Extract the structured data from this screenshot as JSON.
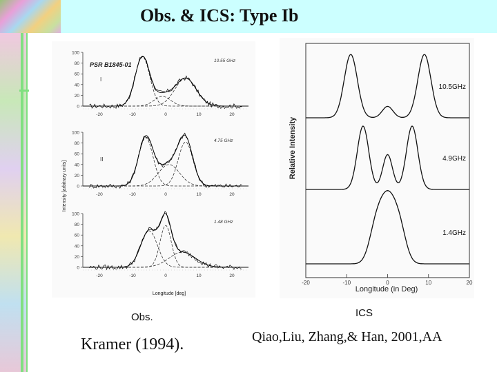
{
  "slide": {
    "title": "Obs. & ICS:  Type Ib",
    "left_caption": "Obs.",
    "right_caption": "ICS",
    "left_reference": "Kramer (1994).",
    "right_reference": "Qiao,Liu, Zhang,& Han, 2001,AA",
    "colors": {
      "banner": "#ccffff",
      "accent_green": "#80e080"
    }
  },
  "chart_data": [
    {
      "type": "line",
      "title": "",
      "source": "Kramer (1994)",
      "pulsar": "PSR B1845-01",
      "ylabel": "Intensity [arbitrary units]",
      "xlabel": "Longitude [deg]",
      "xlim": [
        -25,
        25
      ],
      "ylim": [
        0,
        100
      ],
      "x_ticks": [
        "-20",
        "-10",
        "0",
        "10",
        "20"
      ],
      "y_ticks": [
        "0",
        "20",
        "40",
        "60",
        "80",
        "100"
      ],
      "panels": [
        {
          "frequency": "10.55 GHz",
          "label": "I",
          "components": [
            {
              "center": -7,
              "amp": 92,
              "width": 2.2
            },
            {
              "center": -1,
              "amp": 18,
              "width": 2.5
            },
            {
              "center": 6,
              "amp": 52,
              "width": 3.2
            }
          ]
        },
        {
          "frequency": "4.75 GHz",
          "label": "II",
          "components": [
            {
              "center": -6,
              "amp": 90,
              "width": 2.2
            },
            {
              "center": 1,
              "amp": 40,
              "width": 3.2
            },
            {
              "center": 6,
              "amp": 82,
              "width": 2.2
            }
          ]
        },
        {
          "frequency": "1.48 GHz",
          "label": "",
          "components": [
            {
              "center": -5,
              "amp": 68,
              "width": 2.5
            },
            {
              "center": 0,
              "amp": 78,
              "width": 1.7
            },
            {
              "center": 5,
              "amp": 28,
              "width": 4
            }
          ]
        }
      ]
    },
    {
      "type": "line",
      "title": "",
      "source": "Qiao, Liu, Zhang & Han (2001)",
      "ylabel": "Relative Intensity",
      "xlabel": "Longitude (in Deg)",
      "xlim": [
        -20,
        20
      ],
      "x_ticks": [
        "-20",
        "-10",
        "0",
        "10",
        "20"
      ],
      "panels": [
        {
          "frequency": "10.5GHz",
          "components": [
            {
              "center": -9,
              "amp": 1.0,
              "width": 1.6
            },
            {
              "center": 0,
              "amp": 0.18,
              "width": 1.3
            },
            {
              "center": 9,
              "amp": 1.0,
              "width": 1.6
            }
          ]
        },
        {
          "frequency": "4.9GHz",
          "components": [
            {
              "center": -6,
              "amp": 1.0,
              "width": 1.4
            },
            {
              "center": 0,
              "amp": 0.55,
              "width": 1.2
            },
            {
              "center": 6,
              "amp": 1.0,
              "width": 1.4
            }
          ]
        },
        {
          "frequency": "1.4GHz",
          "components": [
            {
              "center": 0,
              "amp": 1.0,
              "width": 2.0
            },
            {
              "center": -3,
              "amp": 0.45,
              "width": 1.6
            },
            {
              "center": 3,
              "amp": 0.45,
              "width": 1.6
            }
          ]
        }
      ]
    }
  ]
}
